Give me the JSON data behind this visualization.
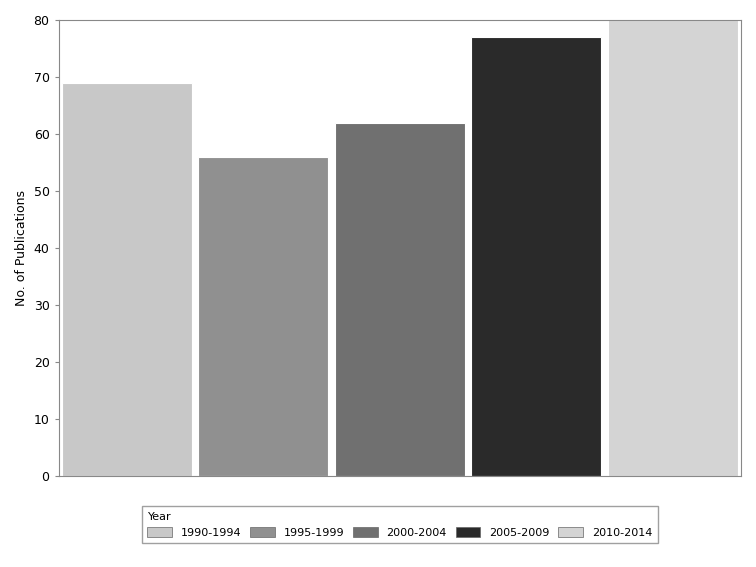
{
  "categories": [
    "1990-1994",
    "1995-1999",
    "2000-2004",
    "2005-2009",
    "2010-2014"
  ],
  "values": [
    69,
    56,
    62,
    77,
    80
  ],
  "bar_colors": [
    "#c8c8c8",
    "#909090",
    "#707070",
    "#2a2a2a",
    "#d4d4d4"
  ],
  "ylabel": "No. of Publications",
  "ylim": [
    0,
    80
  ],
  "yticks": [
    0,
    10,
    20,
    30,
    40,
    50,
    60,
    70,
    80
  ],
  "legend_label": "Year",
  "background_color": "#ffffff",
  "bar_edge_color": "#ffffff",
  "bar_width": 0.95,
  "legend_colors": [
    "#c8c8c8",
    "#909090",
    "#707070",
    "#2a2a2a",
    "#d4d4d4"
  ]
}
